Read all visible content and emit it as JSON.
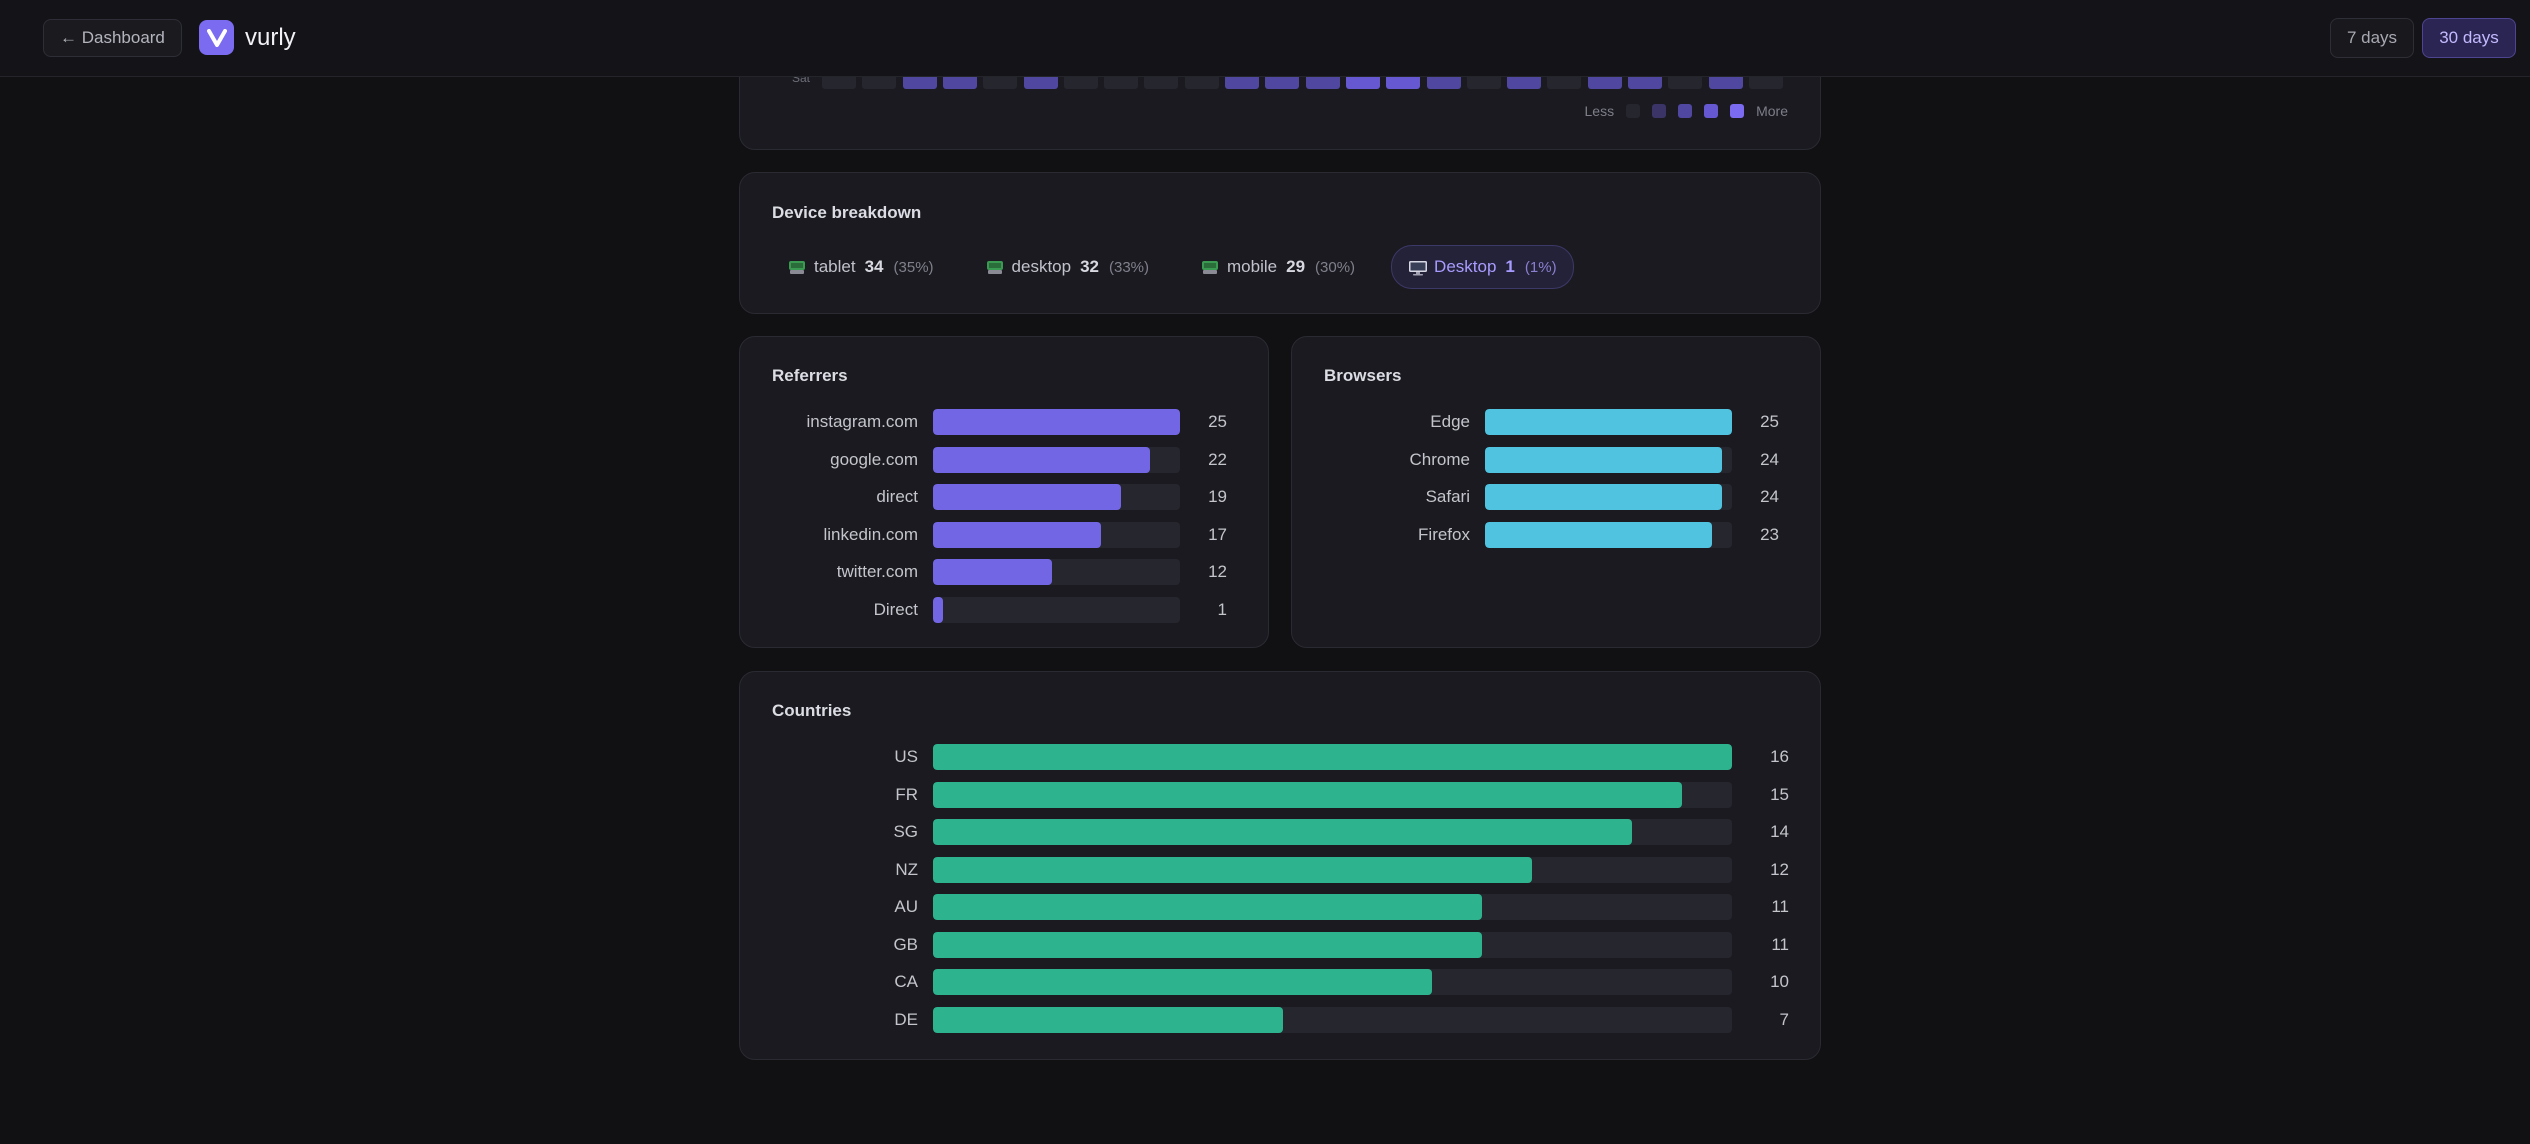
{
  "header": {
    "back_label": "← Dashboard",
    "brand": "vurly",
    "logo_letter": "V",
    "ranges": [
      "7 days",
      "30 days"
    ],
    "active_range": "30 days"
  },
  "activity": {
    "row_label": "Sat",
    "levels": [
      0,
      0,
      2,
      2,
      0,
      2,
      0,
      0,
      0,
      0,
      2,
      2,
      2,
      3,
      3,
      2,
      0,
      2,
      0,
      2,
      2,
      0,
      2,
      0
    ],
    "legend_less": "Less",
    "legend_more": "More",
    "colors": [
      "#26262e",
      "#3a3566",
      "#4f47a0",
      "#6558d0",
      "#7b6bf0"
    ]
  },
  "devices": {
    "title": "Device breakdown",
    "items": [
      {
        "name": "tablet",
        "count": "34",
        "pct": "(35%)",
        "icon": "unknown-device-icon",
        "active": false
      },
      {
        "name": "desktop",
        "count": "32",
        "pct": "(33%)",
        "icon": "unknown-device-icon",
        "active": false
      },
      {
        "name": "mobile",
        "count": "29",
        "pct": "(30%)",
        "icon": "unknown-device-icon",
        "active": false
      },
      {
        "name": "Desktop",
        "count": "1",
        "pct": "(1%)",
        "icon": "monitor-icon",
        "active": true
      }
    ]
  },
  "referrers": {
    "title": "Referrers",
    "color": "#7366e4",
    "max": 25,
    "items": [
      {
        "label": "instagram.com",
        "value": 25
      },
      {
        "label": "google.com",
        "value": 22
      },
      {
        "label": "direct",
        "value": 19
      },
      {
        "label": "linkedin.com",
        "value": 17
      },
      {
        "label": "twitter.com",
        "value": 12
      },
      {
        "label": "Direct",
        "value": 1
      }
    ]
  },
  "browsers": {
    "title": "Browsers",
    "color": "#4fc3df",
    "max": 25,
    "items": [
      {
        "label": "Edge",
        "value": 25
      },
      {
        "label": "Chrome",
        "value": 24
      },
      {
        "label": "Safari",
        "value": 24
      },
      {
        "label": "Firefox",
        "value": 23
      }
    ]
  },
  "countries": {
    "title": "Countries",
    "color": "#2db48e",
    "max": 16,
    "items": [
      {
        "label": "US",
        "value": 16
      },
      {
        "label": "FR",
        "value": 15
      },
      {
        "label": "SG",
        "value": 14
      },
      {
        "label": "NZ",
        "value": 12
      },
      {
        "label": "AU",
        "value": 11
      },
      {
        "label": "GB",
        "value": 11
      },
      {
        "label": "CA",
        "value": 10
      },
      {
        "label": "DE",
        "value": 7
      }
    ]
  }
}
